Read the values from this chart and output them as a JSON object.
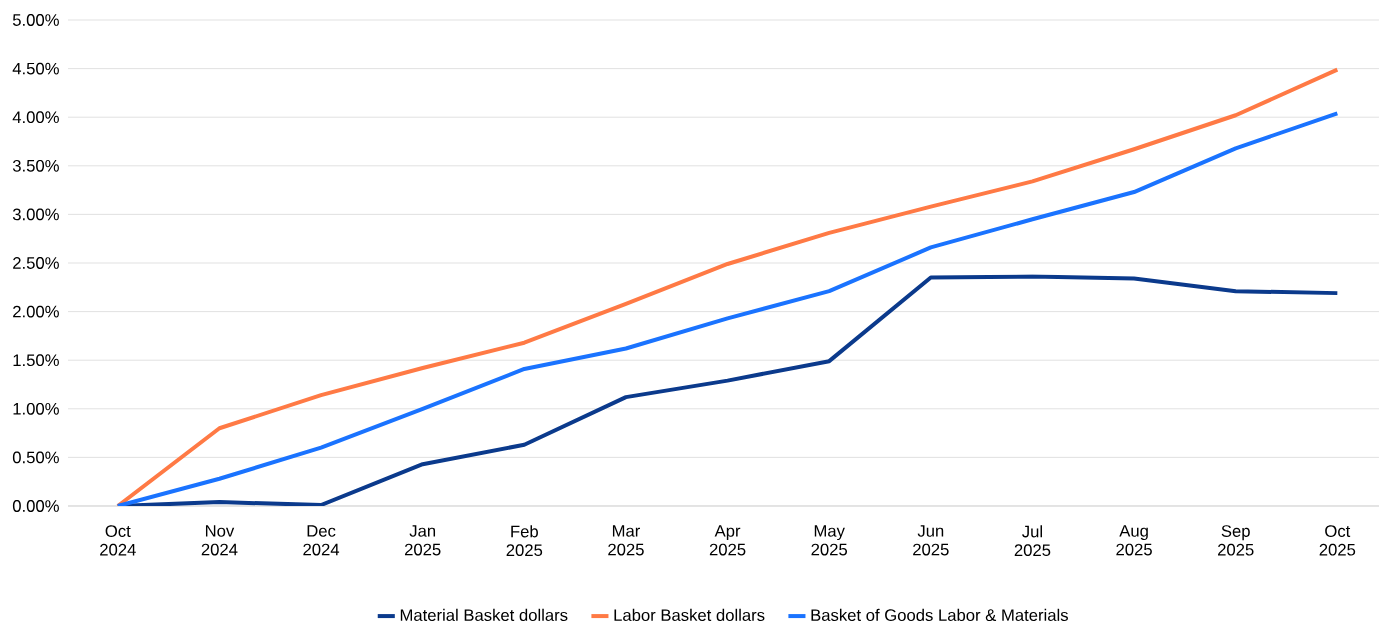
{
  "chart_data": {
    "type": "line",
    "categories": [
      "Oct 2024",
      "Nov 2024",
      "Dec 2024",
      "Jan 2025",
      "Feb 2025",
      "Mar 2025",
      "Apr 2025",
      "May 2025",
      "Jun 2025",
      "Jul 2025",
      "Aug 2025",
      "Sep 2025",
      "Oct 2025"
    ],
    "series": [
      {
        "name": "Material Basket dollars",
        "color": "#0b3a8c",
        "values": [
          0,
          0.04,
          0.01,
          0.43,
          0.63,
          1.12,
          1.29,
          1.49,
          2.35,
          2.36,
          2.34,
          2.21,
          2.19
        ]
      },
      {
        "name": "Labor Basket dollars",
        "color": "#ff7a45",
        "values": [
          0,
          0.8,
          1.14,
          1.42,
          1.68,
          2.08,
          2.49,
          2.81,
          3.08,
          3.34,
          3.67,
          4.02,
          4.49
        ]
      },
      {
        "name": "Basket of Goods Labor & Materials",
        "color": "#1a73ff",
        "values": [
          0,
          0.28,
          0.6,
          1.0,
          1.41,
          1.62,
          1.93,
          2.21,
          2.66,
          2.95,
          3.23,
          3.68,
          4.04
        ]
      }
    ],
    "ylim": [
      0,
      5
    ],
    "yticks": [
      {
        "value": 0,
        "label": "0.00%"
      },
      {
        "value": 0.5,
        "label": "0.50%"
      },
      {
        "value": 1,
        "label": "1.00%"
      },
      {
        "value": 1.5,
        "label": "1.50%"
      },
      {
        "value": 2,
        "label": "2.00%"
      },
      {
        "value": 2.5,
        "label": "2.50%"
      },
      {
        "value": 3,
        "label": "3.00%"
      },
      {
        "value": 3.5,
        "label": "3.50%"
      },
      {
        "value": 4,
        "label": "4.00%"
      },
      {
        "value": 4.5,
        "label": "4.50%"
      },
      {
        "value": 5,
        "label": "5.00%"
      }
    ],
    "grid": "y",
    "legend": "bottom",
    "marker": "none",
    "line_style": "solid"
  }
}
